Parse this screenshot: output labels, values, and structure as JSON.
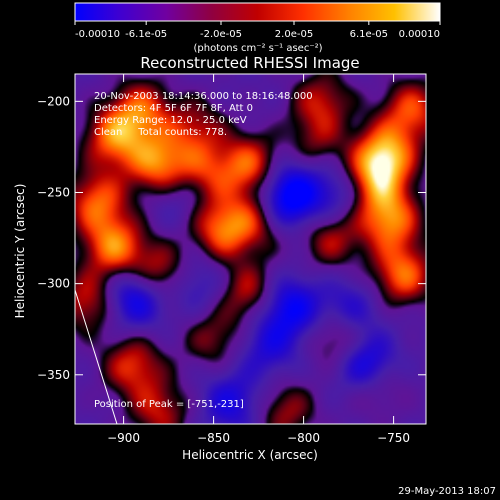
{
  "colorbar": {
    "tick_labels": [
      "-0.00010",
      "-6.1e-05",
      "-2.0e-05",
      "2.0e-05",
      "6.1e-05",
      "0.00010"
    ],
    "units_label": "(photons cm⁻² s⁻¹ asec⁻²)",
    "range": [
      -0.0001,
      0.0001
    ],
    "colors": [
      "#0000ff",
      "#4000d0",
      "#7000a0",
      "#900040",
      "#c00000",
      "#ff3000",
      "#ff8000",
      "#ffc000",
      "#ffffff"
    ]
  },
  "chart_data": {
    "type": "heatmap",
    "title": "Reconstructed RHESSI Image",
    "xlabel": "Heliocentric X (arcsec)",
    "ylabel": "Heliocentric Y (arcsec)",
    "xlim": [
      -927,
      -732
    ],
    "ylim": [
      -377,
      -185
    ],
    "x_ticks": [
      -900,
      -850,
      -800,
      -750
    ],
    "y_ticks": [
      -200,
      -250,
      -300,
      -350
    ],
    "annotations": [
      "20-Nov-2003 18:14:36.000 to 18:16:48.000",
      "Detectors: 4F 5F 6F 7F 8F, Att 0",
      "Energy Range: 12.0 - 25.0 keV",
      "Clean     Total counts: 778."
    ],
    "peak_label": "Position of Peak = [-751,-231]",
    "peak_position": [
      -751,
      -231
    ],
    "blobs": [
      {
        "x": -905,
        "y": -220,
        "v": 0.8
      },
      {
        "x": -890,
        "y": -205,
        "v": 0.7
      },
      {
        "x": -880,
        "y": -235,
        "v": 0.9
      },
      {
        "x": -915,
        "y": -255,
        "v": 0.75
      },
      {
        "x": -905,
        "y": -280,
        "v": 0.85
      },
      {
        "x": -880,
        "y": -295,
        "v": 0.7
      },
      {
        "x": -920,
        "y": -310,
        "v": 0.6
      },
      {
        "x": -895,
        "y": -345,
        "v": 0.65
      },
      {
        "x": -880,
        "y": -370,
        "v": 0.55
      },
      {
        "x": -860,
        "y": -215,
        "v": 0.5
      },
      {
        "x": -845,
        "y": -270,
        "v": 0.8
      },
      {
        "x": -855,
        "y": -240,
        "v": 0.55
      },
      {
        "x": -830,
        "y": -235,
        "v": 0.75
      },
      {
        "x": -825,
        "y": -265,
        "v": 0.5
      },
      {
        "x": -830,
        "y": -305,
        "v": 0.6
      },
      {
        "x": -850,
        "y": -330,
        "v": 0.45
      },
      {
        "x": -810,
        "y": -370,
        "v": 0.5
      },
      {
        "x": -790,
        "y": -200,
        "v": 0.55
      },
      {
        "x": -795,
        "y": -225,
        "v": 0.6
      },
      {
        "x": -785,
        "y": -275,
        "v": 0.55
      },
      {
        "x": -780,
        "y": -330,
        "v": 0.6
      },
      {
        "x": -760,
        "y": -355,
        "v": 0.5
      },
      {
        "x": -755,
        "y": -230,
        "v": 1.0
      },
      {
        "x": -752,
        "y": -265,
        "v": 0.85
      },
      {
        "x": -745,
        "y": -295,
        "v": 0.8
      },
      {
        "x": -740,
        "y": -205,
        "v": 0.7
      },
      {
        "x": -762,
        "y": -245,
        "v": 0.65
      },
      {
        "x": -870,
        "y": -250,
        "v": -0.35
      },
      {
        "x": -808,
        "y": -253,
        "v": -1.0
      },
      {
        "x": -860,
        "y": -300,
        "v": -0.4
      },
      {
        "x": -893,
        "y": -307,
        "v": -0.8
      },
      {
        "x": -840,
        "y": -365,
        "v": -0.55
      },
      {
        "x": -808,
        "y": -313,
        "v": -0.75
      },
      {
        "x": -775,
        "y": -315,
        "v": -0.5
      },
      {
        "x": -765,
        "y": -345,
        "v": -0.9
      },
      {
        "x": -800,
        "y": -230,
        "v": -0.3
      },
      {
        "x": -780,
        "y": -250,
        "v": -0.45
      },
      {
        "x": -820,
        "y": -335,
        "v": -0.45
      }
    ]
  },
  "timestamp": "29-May-2013 18:07"
}
